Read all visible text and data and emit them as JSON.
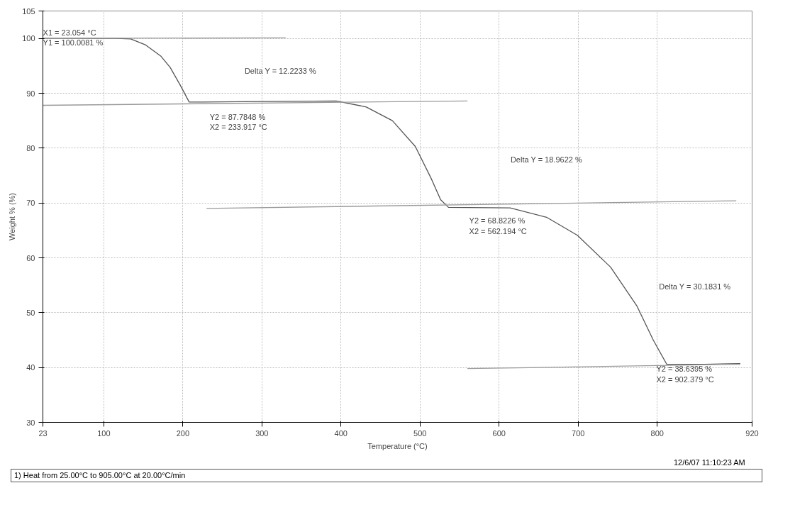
{
  "chart_data": {
    "type": "line",
    "xlabel": "Temperature (°C)",
    "ylabel": "Weight % (%)",
    "xlim": [
      23,
      920
    ],
    "ylim": [
      30,
      105
    ],
    "xticks": [
      23,
      100,
      200,
      300,
      400,
      500,
      600,
      700,
      800,
      920
    ],
    "yticks": [
      30,
      40,
      50,
      60,
      70,
      80,
      90,
      100,
      105
    ],
    "grid": true,
    "marker": "none",
    "line_style": "solid",
    "series": [
      {
        "color": "#555555",
        "x": [
          23,
          116,
          134,
          153,
          172,
          184,
          197,
          208,
          225,
          303,
          394,
          432,
          465,
          494,
          514,
          526,
          536,
          614,
          660,
          699,
          741,
          774,
          795,
          812,
          860,
          905
        ],
        "values": [
          100.0,
          100.0,
          99.9,
          98.8,
          96.8,
          94.7,
          91.4,
          88.4,
          88.4,
          88.5,
          88.6,
          87.5,
          85.0,
          80.3,
          74.5,
          70.6,
          69.2,
          69.1,
          67.4,
          64.1,
          58.3,
          51.3,
          45.0,
          40.6,
          40.6,
          40.7
        ]
      },
      {
        "color": "#9a9a9a",
        "x": [
          23,
          330
        ],
        "values": [
          100.0,
          100.1
        ]
      },
      {
        "color": "#9a9a9a",
        "x": [
          23,
          560
        ],
        "values": [
          87.8,
          88.6
        ]
      },
      {
        "color": "#9a9a9a",
        "x": [
          230,
          900
        ],
        "values": [
          69.0,
          70.4
        ]
      },
      {
        "color": "#9a9a9a",
        "x": [
          560,
          905
        ],
        "values": [
          39.8,
          40.6
        ]
      }
    ],
    "annotations": [
      {
        "text": "X1 = 23.054 °C\nY1 = 100.0081 %",
        "x": 23.054,
        "y": 100.0081
      },
      "Delta Y = 12.2233 %",
      {
        "text": "Y2 = 87.7848 %\nX2 = 233.917 °C",
        "x": 233.917,
        "y": 87.7848
      },
      "Delta Y = 18.9622 %",
      {
        "text": "Y2 = 68.8226 %\nX2 = 562.194 °C",
        "x": 562.194,
        "y": 68.8226
      },
      "Delta Y = 30.1831 %",
      "Y2 = 38.6395 %\nX2 = 902.379 °C",
      "12/6/07 11:10:23 AM",
      "1) Heat from 25.00°C to 905.00°C at 20.00°C/min"
    ]
  }
}
